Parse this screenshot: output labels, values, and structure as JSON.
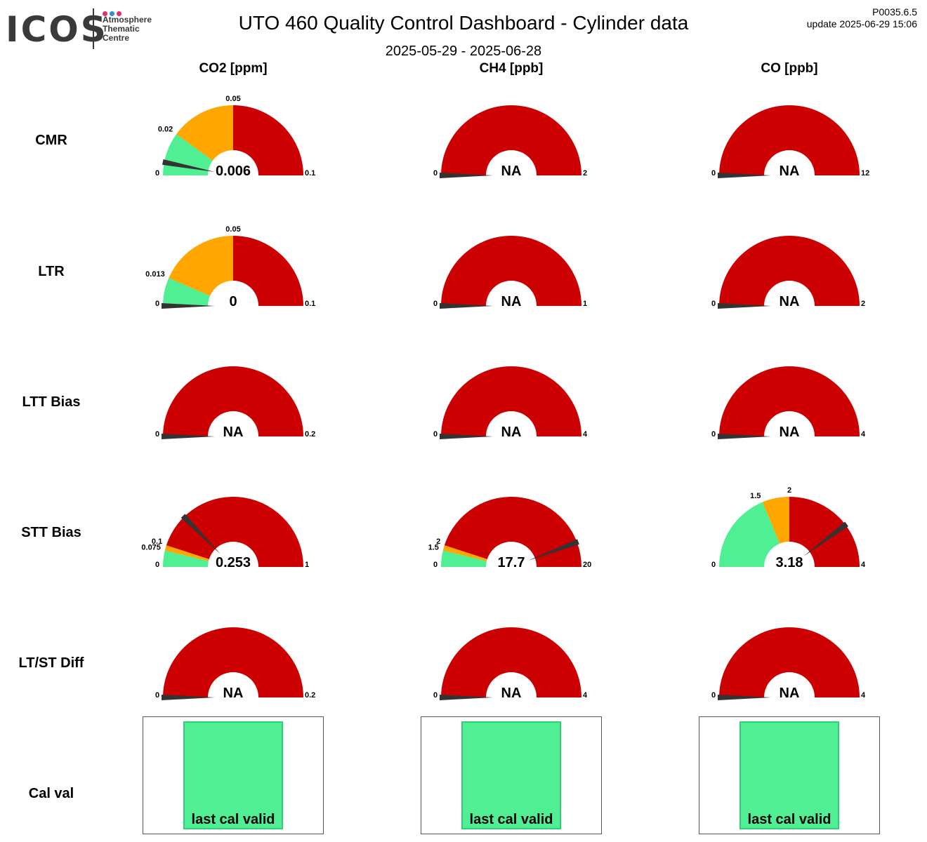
{
  "logo": {
    "word": "ICOS",
    "sub": [
      "Atmosphere",
      "Thematic",
      "Centre"
    ],
    "dot_colors": [
      "#e0306e",
      "#2f8fd8",
      "#e0306e"
    ]
  },
  "header": {
    "title": "UTO 460 Quality Control Dashboard - Cylinder data",
    "date_range": "2025-05-29 - 2025-06-28",
    "version": "P0035.6.5",
    "update": "update  2025-06-29 15:06"
  },
  "colors": {
    "good": "#50ef94",
    "warn": "#ffa600",
    "bad": "#cc0000",
    "needle": "#333333"
  },
  "columns": [
    "CO2 [ppm]",
    "CH4 [ppb]",
    "CO [ppb]"
  ],
  "rows": [
    "CMR",
    "LTR",
    "LTT Bias",
    "STT Bias",
    "LT/ST Diff",
    "Cal val"
  ],
  "chart_data": [
    {
      "type": "gauge",
      "row": "CMR",
      "column": "CO2 [ppm]",
      "min": 0,
      "max": 0.1,
      "value": 0.006,
      "display": "0.006",
      "bands": [
        {
          "from": 0,
          "to": 0.02,
          "status": "good"
        },
        {
          "from": 0.02,
          "to": 0.05,
          "status": "warn"
        },
        {
          "from": 0.05,
          "to": 0.1,
          "status": "bad"
        }
      ],
      "tick_labels": [
        "0.02",
        "0.05"
      ],
      "min_label": "0",
      "max_label": "0.1"
    },
    {
      "type": "gauge",
      "row": "CMR",
      "column": "CH4 [ppb]",
      "min": 0,
      "max": 2,
      "value": null,
      "display": "NA",
      "bands": [
        {
          "from": 0,
          "to": 2,
          "status": "bad"
        }
      ],
      "tick_labels": [],
      "min_label": "0",
      "max_label": "2"
    },
    {
      "type": "gauge",
      "row": "CMR",
      "column": "CO [ppb]",
      "min": 0,
      "max": 12,
      "value": null,
      "display": "NA",
      "bands": [
        {
          "from": 0,
          "to": 12,
          "status": "bad"
        }
      ],
      "tick_labels": [],
      "min_label": "0",
      "max_label": "12"
    },
    {
      "type": "gauge",
      "row": "LTR",
      "column": "CO2 [ppm]",
      "min": 0,
      "max": 0.1,
      "value": 0,
      "display": "0",
      "bands": [
        {
          "from": 0,
          "to": 0.013,
          "status": "good"
        },
        {
          "from": 0.013,
          "to": 0.05,
          "status": "warn"
        },
        {
          "from": 0.05,
          "to": 0.1,
          "status": "bad"
        }
      ],
      "tick_labels": [
        "0.013",
        "0.05"
      ],
      "min_label": "0",
      "max_label": "0.1"
    },
    {
      "type": "gauge",
      "row": "LTR",
      "column": "CH4 [ppb]",
      "min": 0,
      "max": 1,
      "value": null,
      "display": "NA",
      "bands": [
        {
          "from": 0,
          "to": 1,
          "status": "bad"
        }
      ],
      "tick_labels": [],
      "min_label": "0",
      "max_label": "1"
    },
    {
      "type": "gauge",
      "row": "LTR",
      "column": "CO [ppb]",
      "min": 0,
      "max": 2,
      "value": null,
      "display": "NA",
      "bands": [
        {
          "from": 0,
          "to": 2,
          "status": "bad"
        }
      ],
      "tick_labels": [],
      "min_label": "0",
      "max_label": "2"
    },
    {
      "type": "gauge",
      "row": "LTT Bias",
      "column": "CO2 [ppm]",
      "min": 0,
      "max": 0.2,
      "value": null,
      "display": "NA",
      "bands": [
        {
          "from": 0,
          "to": 0.2,
          "status": "bad"
        }
      ],
      "tick_labels": [],
      "min_label": "0",
      "max_label": "0.2"
    },
    {
      "type": "gauge",
      "row": "LTT Bias",
      "column": "CH4 [ppb]",
      "min": 0,
      "max": 4,
      "value": null,
      "display": "NA",
      "bands": [
        {
          "from": 0,
          "to": 4,
          "status": "bad"
        }
      ],
      "tick_labels": [],
      "min_label": "0",
      "max_label": "4"
    },
    {
      "type": "gauge",
      "row": "LTT Bias",
      "column": "CO [ppb]",
      "min": 0,
      "max": 4,
      "value": null,
      "display": "NA",
      "bands": [
        {
          "from": 0,
          "to": 4,
          "status": "bad"
        }
      ],
      "tick_labels": [],
      "min_label": "0",
      "max_label": "4"
    },
    {
      "type": "gauge",
      "row": "STT Bias",
      "column": "CO2 [ppm]",
      "min": 0,
      "max": 1,
      "value": 0.253,
      "display": "0.253",
      "bands": [
        {
          "from": 0,
          "to": 0.075,
          "status": "good"
        },
        {
          "from": 0.075,
          "to": 0.1,
          "status": "warn"
        },
        {
          "from": 0.1,
          "to": 1,
          "status": "bad"
        }
      ],
      "tick_labels": [
        "0.075",
        "0.1"
      ],
      "min_label": "0",
      "max_label": "1"
    },
    {
      "type": "gauge",
      "row": "STT Bias",
      "column": "CH4 [ppb]",
      "min": 0,
      "max": 20,
      "value": 17.7,
      "display": "17.7",
      "bands": [
        {
          "from": 0,
          "to": 1.5,
          "status": "good"
        },
        {
          "from": 1.5,
          "to": 2,
          "status": "warn"
        },
        {
          "from": 2,
          "to": 20,
          "status": "bad"
        }
      ],
      "tick_labels": [
        "1.5",
        "2"
      ],
      "min_label": "0",
      "max_label": "20"
    },
    {
      "type": "gauge",
      "row": "STT Bias",
      "column": "CO [ppb]",
      "min": 0,
      "max": 4,
      "value": 3.18,
      "display": "3.18",
      "bands": [
        {
          "from": 0,
          "to": 1.5,
          "status": "good"
        },
        {
          "from": 1.5,
          "to": 2,
          "status": "warn"
        },
        {
          "from": 2,
          "to": 4,
          "status": "bad"
        }
      ],
      "tick_labels": [
        "1.5",
        "2"
      ],
      "min_label": "0",
      "max_label": "4"
    },
    {
      "type": "gauge",
      "row": "LT/ST Diff",
      "column": "CO2 [ppm]",
      "min": 0,
      "max": 0.2,
      "value": null,
      "display": "NA",
      "bands": [
        {
          "from": 0,
          "to": 0.2,
          "status": "bad"
        }
      ],
      "tick_labels": [],
      "min_label": "0",
      "max_label": "0.2"
    },
    {
      "type": "gauge",
      "row": "LT/ST Diff",
      "column": "CH4 [ppb]",
      "min": 0,
      "max": 4,
      "value": null,
      "display": "NA",
      "bands": [
        {
          "from": 0,
          "to": 4,
          "status": "bad"
        }
      ],
      "tick_labels": [],
      "min_label": "0",
      "max_label": "4"
    },
    {
      "type": "gauge",
      "row": "LT/ST Diff",
      "column": "CO [ppb]",
      "min": 0,
      "max": 4,
      "value": null,
      "display": "NA",
      "bands": [
        {
          "from": 0,
          "to": 4,
          "status": "bad"
        }
      ],
      "tick_labels": [],
      "min_label": "0",
      "max_label": "4"
    }
  ],
  "cal_val": [
    {
      "column": "CO2 [ppm]",
      "text": "last cal valid",
      "status": "good"
    },
    {
      "column": "CH4 [ppb]",
      "text": "last cal valid",
      "status": "good"
    },
    {
      "column": "CO [ppb]",
      "text": "last cal valid",
      "status": "good"
    }
  ]
}
